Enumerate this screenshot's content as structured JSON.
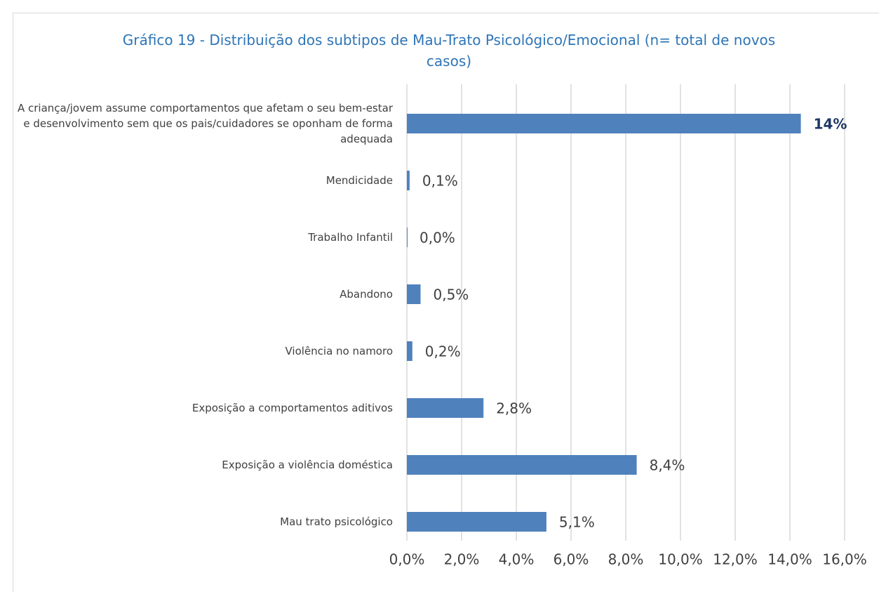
{
  "chart_data": {
    "type": "bar",
    "orientation": "horizontal",
    "title": "Gráfico 19 - Distribuição dos subtipos de Mau-Trato Psicológico/Emocional (n= total de novos casos)",
    "categories": [
      "A criança/jovem assume comportamentos que afetam o seu bem-estar e desenvolvimento sem que os pais/cuidadores se oponham de forma adequada",
      "Mendicidade",
      "Trabalho Infantil",
      "Abandono",
      "Violência no namoro",
      "Exposição a comportamentos aditivos",
      "Exposição a violência doméstica",
      "Mau trato psicológico"
    ],
    "values": [
      14.4,
      0.1,
      0.0,
      0.5,
      0.2,
      2.8,
      8.4,
      5.1
    ],
    "value_labels": [
      "14%",
      "0,1%",
      "0,0%",
      "0,5%",
      "0,2%",
      "2,8%",
      "8,4%",
      "5,1%"
    ],
    "color": "#4f81bd",
    "xlim": [
      0,
      16
    ],
    "xticks": [
      {
        "value": 0,
        "label": "0,0%"
      },
      {
        "value": 2,
        "label": "2,0%"
      },
      {
        "value": 4,
        "label": "4,0%"
      },
      {
        "value": 6,
        "label": "6,0%"
      },
      {
        "value": 8,
        "label": "8,0%"
      },
      {
        "value": 10,
        "label": "10,0%"
      },
      {
        "value": 12,
        "label": "12,0%"
      },
      {
        "value": 14,
        "label": "14,0%"
      },
      {
        "value": 16,
        "label": "16,0%"
      }
    ],
    "grid": true
  }
}
